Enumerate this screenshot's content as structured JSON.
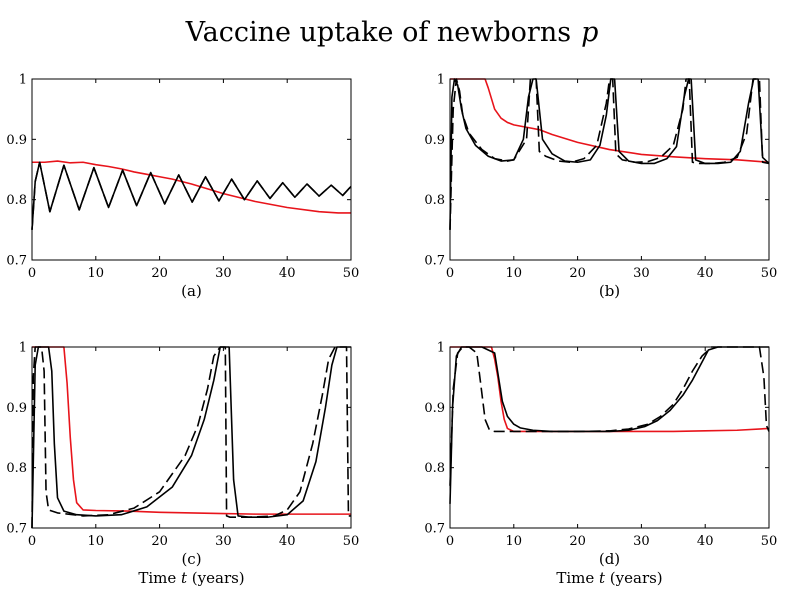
{
  "figure_title": "Vaccine uptake of newborns",
  "figure_title_var": "p",
  "colors": {
    "solid": "#000000",
    "dashed": "#000000",
    "red": "#e8141b"
  },
  "chart_data": [
    {
      "id": "a",
      "type": "line",
      "label": "(a)",
      "xlabel_text": "",
      "xlabel_var": "",
      "xlim": [
        0,
        50
      ],
      "ylim": [
        0.7,
        1
      ],
      "xticks": [
        0,
        10,
        20,
        30,
        40,
        50
      ],
      "yticks": [
        0.7,
        0.8,
        0.9,
        1
      ],
      "series": [
        {
          "name": "dashed",
          "style": "dashed",
          "color": "#000000",
          "x": [
            0,
            0.5,
            1.2,
            2.8,
            5.0,
            7.4,
            9.7,
            12.0,
            14.2,
            16.4,
            18.6,
            20.8,
            23.0,
            25.1,
            27.2,
            29.3,
            31.3,
            33.3,
            35.3,
            37.3,
            39.3,
            41.2,
            43.1,
            45.0,
            46.9,
            48.7,
            50
          ],
          "y": [
            0.75,
            0.83,
            0.862,
            0.78,
            0.857,
            0.783,
            0.853,
            0.787,
            0.849,
            0.79,
            0.845,
            0.793,
            0.841,
            0.796,
            0.838,
            0.798,
            0.834,
            0.8,
            0.831,
            0.802,
            0.828,
            0.804,
            0.826,
            0.806,
            0.824,
            0.807,
            0.822
          ]
        },
        {
          "name": "solid",
          "style": "solid",
          "color": "#000000",
          "x": [
            0,
            0.5,
            1.2,
            2.8,
            5.0,
            7.4,
            9.7,
            12.0,
            14.2,
            16.4,
            18.6,
            20.8,
            23.0,
            25.1,
            27.2,
            29.3,
            31.3,
            33.3,
            35.3,
            37.3,
            39.3,
            41.2,
            43.1,
            45.0,
            46.9,
            48.7,
            50
          ],
          "y": [
            0.75,
            0.83,
            0.862,
            0.78,
            0.857,
            0.783,
            0.853,
            0.787,
            0.849,
            0.79,
            0.845,
            0.793,
            0.841,
            0.796,
            0.838,
            0.798,
            0.834,
            0.8,
            0.831,
            0.802,
            0.828,
            0.804,
            0.826,
            0.806,
            0.824,
            0.807,
            0.822
          ]
        },
        {
          "name": "red",
          "style": "solid",
          "color": "#e8141b",
          "x": [
            0,
            2,
            4,
            6,
            8,
            10,
            12,
            14,
            16,
            18,
            20,
            22,
            25,
            30,
            35,
            40,
            45,
            48,
            50
          ],
          "y": [
            0.862,
            0.862,
            0.864,
            0.861,
            0.862,
            0.858,
            0.855,
            0.851,
            0.846,
            0.842,
            0.838,
            0.834,
            0.826,
            0.81,
            0.797,
            0.787,
            0.78,
            0.778,
            0.778
          ]
        }
      ]
    },
    {
      "id": "b",
      "type": "line",
      "label": "(b)",
      "xlabel_text": "",
      "xlabel_var": "",
      "xlim": [
        0,
        50
      ],
      "ylim": [
        0.7,
        1
      ],
      "xticks": [
        0,
        10,
        20,
        30,
        40,
        50
      ],
      "yticks": [
        0.7,
        0.8,
        0.9,
        1
      ],
      "series": [
        {
          "name": "dashed",
          "style": "dashed",
          "color": "#000000",
          "x": [
            0,
            0.5,
            1.0,
            1.5,
            2.0,
            3,
            5,
            7,
            9,
            10,
            12,
            12.6,
            13,
            13.5,
            14,
            15,
            17,
            19,
            21,
            23,
            24.5,
            25,
            25.5,
            26,
            27,
            29,
            31,
            33,
            35,
            36.5,
            37,
            37.5,
            38,
            39,
            41,
            43,
            45,
            46.5,
            47.5,
            48,
            48.5,
            49,
            50
          ],
          "y": [
            0.75,
            0.95,
            1.0,
            0.98,
            0.94,
            0.91,
            0.883,
            0.868,
            0.864,
            0.866,
            0.9,
            1.0,
            1.0,
            1.0,
            0.88,
            0.872,
            0.864,
            0.862,
            0.868,
            0.89,
            0.96,
            1.0,
            1.0,
            0.876,
            0.866,
            0.862,
            0.863,
            0.87,
            0.89,
            0.95,
            1.0,
            1.0,
            0.862,
            0.86,
            0.86,
            0.862,
            0.87,
            0.91,
            1.0,
            1.0,
            1.0,
            0.862,
            0.86
          ]
        },
        {
          "name": "solid",
          "style": "solid",
          "color": "#000000",
          "x": [
            0,
            0.3,
            0.7,
            1.2,
            1.8,
            2.5,
            4,
            6,
            8,
            10,
            11.5,
            12.3,
            13.0,
            13.5,
            14.5,
            16,
            18,
            20,
            22,
            23.5,
            24.5,
            25.2,
            25.8,
            26.5,
            28,
            30,
            32,
            34,
            35.5,
            36.7,
            37.4,
            37.8,
            38.5,
            40,
            42,
            44,
            45.5,
            46.8,
            47.6,
            48.3,
            49,
            50
          ],
          "y": [
            0.75,
            0.97,
            1.0,
            0.99,
            0.95,
            0.918,
            0.89,
            0.872,
            0.864,
            0.866,
            0.9,
            0.97,
            1.0,
            1.0,
            0.9,
            0.876,
            0.864,
            0.862,
            0.866,
            0.89,
            0.94,
            1.0,
            1.0,
            0.88,
            0.864,
            0.86,
            0.86,
            0.868,
            0.888,
            0.97,
            1.0,
            1.0,
            0.866,
            0.86,
            0.86,
            0.862,
            0.88,
            0.96,
            1.0,
            1.0,
            0.87,
            0.86
          ]
        },
        {
          "name": "red",
          "style": "solid",
          "color": "#e8141b",
          "x": [
            0,
            5.5,
            6,
            7,
            8,
            9,
            10,
            12,
            14,
            16,
            20,
            25,
            30,
            35,
            40,
            45,
            50
          ],
          "y": [
            1.0,
            1.0,
            0.985,
            0.95,
            0.935,
            0.928,
            0.924,
            0.92,
            0.916,
            0.908,
            0.895,
            0.883,
            0.875,
            0.871,
            0.868,
            0.866,
            0.862
          ]
        }
      ]
    },
    {
      "id": "c",
      "type": "line",
      "label": "(c)",
      "xlabel_text": "Time",
      "xlabel_var": "t",
      "xlabel_unit": "(years)",
      "xlim": [
        0,
        50
      ],
      "ylim": [
        0.7,
        1
      ],
      "xticks": [
        0,
        10,
        20,
        30,
        40,
        50
      ],
      "yticks": [
        0.7,
        0.8,
        0.9,
        1
      ],
      "series": [
        {
          "name": "dashed",
          "style": "dashed",
          "color": "#000000",
          "x": [
            0,
            0.2,
            0.5,
            1.0,
            1.5,
            1.9,
            2.2,
            2.6,
            4,
            8,
            12,
            16,
            20,
            24,
            26,
            27.5,
            28.5,
            29.5,
            30.3,
            30.5,
            31,
            34,
            38,
            40,
            42,
            44,
            45.5,
            46.5,
            47.5,
            48.5,
            49.3,
            49.6,
            50
          ],
          "y": [
            0.7,
            0.95,
            1.0,
            1.0,
            1.0,
            0.96,
            0.76,
            0.73,
            0.725,
            0.72,
            0.722,
            0.733,
            0.76,
            0.82,
            0.87,
            0.93,
            0.985,
            1.0,
            1.0,
            0.72,
            0.718,
            0.718,
            0.72,
            0.73,
            0.76,
            0.84,
            0.92,
            0.98,
            1.0,
            1.0,
            1.0,
            0.72,
            0.72
          ]
        },
        {
          "name": "solid",
          "style": "solid",
          "color": "#000000",
          "x": [
            0,
            0.5,
            1.0,
            1.8,
            2.6,
            3.1,
            3.5,
            4.0,
            5,
            7,
            10,
            14,
            18,
            22,
            25,
            27,
            28.5,
            29.5,
            30.3,
            30.9,
            31.6,
            32.3,
            34,
            37,
            40,
            42.5,
            44.5,
            46,
            47,
            47.8,
            48.6,
            49.4,
            50
          ],
          "y": [
            0.7,
            0.97,
            1.0,
            1.0,
            1.0,
            0.96,
            0.84,
            0.75,
            0.728,
            0.722,
            0.72,
            0.722,
            0.735,
            0.768,
            0.82,
            0.88,
            0.945,
            1.0,
            1.0,
            1.0,
            0.78,
            0.72,
            0.718,
            0.718,
            0.722,
            0.745,
            0.81,
            0.9,
            0.97,
            1.0,
            1.0,
            1.0,
            1.0
          ]
        },
        {
          "name": "red",
          "style": "solid",
          "color": "#e8141b",
          "x": [
            0,
            5.0,
            5.5,
            6,
            6.5,
            7,
            8,
            10,
            15,
            20,
            25,
            30,
            35,
            40,
            45,
            50
          ],
          "y": [
            1.0,
            1.0,
            0.94,
            0.85,
            0.78,
            0.742,
            0.73,
            0.729,
            0.728,
            0.726,
            0.725,
            0.724,
            0.723,
            0.723,
            0.723,
            0.723
          ]
        }
      ]
    },
    {
      "id": "d",
      "type": "line",
      "label": "(d)",
      "xlabel_text": "Time",
      "xlabel_var": "t",
      "xlabel_unit": "(years)",
      "xlim": [
        0,
        50
      ],
      "ylim": [
        0.7,
        1
      ],
      "xticks": [
        0,
        10,
        20,
        30,
        40,
        50
      ],
      "yticks": [
        0.7,
        0.8,
        0.9,
        1
      ],
      "series": [
        {
          "name": "dashed",
          "style": "dashed",
          "color": "#000000",
          "x": [
            0,
            0.5,
            1.2,
            2,
            3,
            4.2,
            4.8,
            5.5,
            6.2,
            7,
            8,
            10,
            15,
            20,
            25,
            28,
            31,
            33,
            35,
            36.5,
            38,
            39.5,
            41,
            44,
            47,
            48.5,
            49.2,
            49.6,
            50
          ],
          "y": [
            0.77,
            0.93,
            0.99,
            1.0,
            1.0,
            0.99,
            0.94,
            0.88,
            0.862,
            0.86,
            0.86,
            0.86,
            0.86,
            0.86,
            0.861,
            0.864,
            0.872,
            0.885,
            0.905,
            0.93,
            0.96,
            0.985,
            1.0,
            1.0,
            1.0,
            1.0,
            0.95,
            0.87,
            0.86
          ]
        },
        {
          "name": "solid",
          "style": "solid",
          "color": "#000000",
          "x": [
            0,
            0.4,
            1.0,
            1.8,
            3,
            5,
            7,
            7.6,
            8.2,
            9,
            10,
            11,
            13,
            16,
            20,
            25,
            28,
            30.5,
            32.5,
            34.5,
            36.5,
            38,
            39.5,
            40.5,
            42,
            45,
            48,
            50
          ],
          "y": [
            0.74,
            0.9,
            0.985,
            1.0,
            1.0,
            1.0,
            0.99,
            0.95,
            0.91,
            0.885,
            0.872,
            0.866,
            0.862,
            0.86,
            0.86,
            0.86,
            0.862,
            0.868,
            0.878,
            0.895,
            0.92,
            0.945,
            0.975,
            0.995,
            1.0,
            1.0,
            1.0,
            1.0
          ]
        },
        {
          "name": "red",
          "style": "solid",
          "color": "#e8141b",
          "x": [
            0,
            6.5,
            7,
            7.5,
            8,
            8.5,
            9,
            10,
            12,
            15,
            20,
            25,
            30,
            35,
            40,
            45,
            50
          ],
          "y": [
            1.0,
            1.0,
            0.98,
            0.95,
            0.91,
            0.88,
            0.865,
            0.86,
            0.86,
            0.86,
            0.86,
            0.86,
            0.86,
            0.86,
            0.861,
            0.862,
            0.865
          ]
        }
      ]
    }
  ]
}
